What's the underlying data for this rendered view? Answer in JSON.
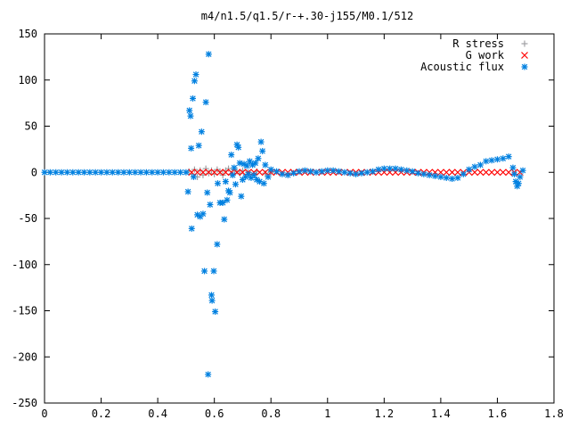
{
  "chart_data": {
    "type": "scatter",
    "title": "m4/n1.5/q1.5/r-+.30-j155/M0.1/512",
    "xlabel": "",
    "ylabel": "",
    "xlim": [
      0,
      1.8
    ],
    "ylim": [
      -250,
      150
    ],
    "x_ticks": [
      "0",
      "0.2",
      "0.4",
      "0.6",
      "0.8",
      "1",
      "1.2",
      "1.4",
      "1.6",
      "1.8"
    ],
    "y_ticks": [
      "150",
      "100",
      "50",
      "0",
      "-50",
      "-100",
      "-150",
      "-200",
      "-250"
    ],
    "grid": false,
    "legend_position": "top-right",
    "series": [
      {
        "name": "R stress",
        "marker": "+",
        "color": "#a0a0a4",
        "points": [
          [
            0.51,
            1
          ],
          [
            0.52,
            -2
          ],
          [
            0.53,
            3
          ],
          [
            0.54,
            -5
          ],
          [
            0.55,
            2
          ],
          [
            0.56,
            -3
          ],
          [
            0.57,
            4
          ],
          [
            0.58,
            -1
          ],
          [
            0.59,
            2
          ],
          [
            0.6,
            -2
          ],
          [
            0.61,
            3
          ],
          [
            0.62,
            1
          ],
          [
            0.63,
            -3
          ],
          [
            0.64,
            2
          ],
          [
            0.65,
            4
          ],
          [
            0.66,
            -2
          ],
          [
            0.67,
            3
          ],
          [
            0.68,
            1
          ],
          [
            0.69,
            -1
          ],
          [
            0.7,
            2
          ],
          [
            0.72,
            0
          ],
          [
            0.75,
            1
          ],
          [
            0.78,
            -1
          ],
          [
            0.8,
            0
          ]
        ]
      },
      {
        "name": "G work",
        "marker": "x",
        "color": "#ff0000",
        "points": [
          [
            0.52,
            0
          ],
          [
            0.54,
            0
          ],
          [
            0.56,
            0
          ],
          [
            0.58,
            0
          ],
          [
            0.6,
            0
          ],
          [
            0.62,
            0
          ],
          [
            0.64,
            0
          ],
          [
            0.66,
            0
          ],
          [
            0.68,
            0
          ],
          [
            0.7,
            0
          ],
          [
            0.72,
            0
          ],
          [
            0.74,
            0
          ],
          [
            0.76,
            0
          ],
          [
            0.78,
            0
          ],
          [
            0.8,
            0
          ],
          [
            0.82,
            0
          ],
          [
            0.84,
            0
          ],
          [
            0.86,
            0
          ],
          [
            0.88,
            0
          ],
          [
            0.9,
            0
          ],
          [
            0.92,
            0
          ],
          [
            0.94,
            0
          ],
          [
            0.96,
            0
          ],
          [
            0.98,
            0
          ],
          [
            1.0,
            0
          ],
          [
            1.02,
            0
          ],
          [
            1.04,
            0
          ],
          [
            1.06,
            0
          ],
          [
            1.08,
            0
          ],
          [
            1.1,
            0
          ],
          [
            1.12,
            0
          ],
          [
            1.14,
            0
          ],
          [
            1.16,
            0
          ],
          [
            1.18,
            0
          ],
          [
            1.2,
            0
          ],
          [
            1.22,
            0
          ],
          [
            1.24,
            0
          ],
          [
            1.26,
            0
          ],
          [
            1.28,
            0
          ],
          [
            1.3,
            0
          ],
          [
            1.32,
            0
          ],
          [
            1.34,
            0
          ],
          [
            1.36,
            0
          ],
          [
            1.38,
            0
          ],
          [
            1.4,
            0
          ],
          [
            1.42,
            0
          ],
          [
            1.44,
            0
          ],
          [
            1.46,
            0
          ],
          [
            1.48,
            0
          ],
          [
            1.5,
            0
          ],
          [
            1.52,
            0
          ],
          [
            1.54,
            0
          ],
          [
            1.56,
            0
          ],
          [
            1.58,
            0
          ],
          [
            1.6,
            0
          ],
          [
            1.62,
            0
          ],
          [
            1.64,
            0
          ],
          [
            1.66,
            0
          ],
          [
            1.68,
            0
          ]
        ]
      },
      {
        "name": "Acoustic flux",
        "marker": "*",
        "color": "#0080e0",
        "points": [
          [
            0.0,
            0
          ],
          [
            0.02,
            0
          ],
          [
            0.04,
            0
          ],
          [
            0.06,
            0
          ],
          [
            0.08,
            0
          ],
          [
            0.1,
            0
          ],
          [
            0.12,
            0
          ],
          [
            0.14,
            0
          ],
          [
            0.16,
            0
          ],
          [
            0.18,
            0
          ],
          [
            0.2,
            0
          ],
          [
            0.22,
            0
          ],
          [
            0.24,
            0
          ],
          [
            0.26,
            0
          ],
          [
            0.28,
            0
          ],
          [
            0.3,
            0
          ],
          [
            0.32,
            0
          ],
          [
            0.34,
            0
          ],
          [
            0.36,
            0
          ],
          [
            0.38,
            0
          ],
          [
            0.4,
            0
          ],
          [
            0.42,
            0
          ],
          [
            0.44,
            0
          ],
          [
            0.46,
            0
          ],
          [
            0.48,
            0
          ],
          [
            0.5,
            0
          ],
          [
            0.507,
            -21
          ],
          [
            0.512,
            67
          ],
          [
            0.516,
            61
          ],
          [
            0.518,
            26
          ],
          [
            0.52,
            -61
          ],
          [
            0.524,
            80
          ],
          [
            0.527,
            -5
          ],
          [
            0.53,
            99
          ],
          [
            0.535,
            106
          ],
          [
            0.54,
            -46
          ],
          [
            0.545,
            29
          ],
          [
            0.55,
            -48
          ],
          [
            0.555,
            44
          ],
          [
            0.56,
            -45
          ],
          [
            0.565,
            -107
          ],
          [
            0.57,
            76
          ],
          [
            0.575,
            -22
          ],
          [
            0.578,
            -219
          ],
          [
            0.58,
            128
          ],
          [
            0.585,
            -35
          ],
          [
            0.59,
            -133
          ],
          [
            0.592,
            -139
          ],
          [
            0.598,
            -107
          ],
          [
            0.603,
            -151
          ],
          [
            0.61,
            -78
          ],
          [
            0.612,
            -12
          ],
          [
            0.62,
            -33
          ],
          [
            0.63,
            -33
          ],
          [
            0.635,
            -51
          ],
          [
            0.64,
            -10
          ],
          [
            0.645,
            -30
          ],
          [
            0.65,
            -20
          ],
          [
            0.655,
            -22
          ],
          [
            0.66,
            19
          ],
          [
            0.665,
            -3
          ],
          [
            0.67,
            5
          ],
          [
            0.675,
            -13
          ],
          [
            0.68,
            30
          ],
          [
            0.685,
            27
          ],
          [
            0.69,
            10
          ],
          [
            0.695,
            -26
          ],
          [
            0.7,
            -8
          ],
          [
            0.705,
            9
          ],
          [
            0.71,
            -5
          ],
          [
            0.715,
            7
          ],
          [
            0.72,
            -2
          ],
          [
            0.725,
            12
          ],
          [
            0.73,
            -6
          ],
          [
            0.735,
            8
          ],
          [
            0.74,
            -3
          ],
          [
            0.745,
            10
          ],
          [
            0.75,
            -8
          ],
          [
            0.755,
            15
          ],
          [
            0.76,
            -10
          ],
          [
            0.765,
            33
          ],
          [
            0.77,
            23
          ],
          [
            0.775,
            -12
          ],
          [
            0.78,
            8
          ],
          [
            0.79,
            -5
          ],
          [
            0.8,
            3
          ],
          [
            0.82,
            1
          ],
          [
            0.84,
            -2
          ],
          [
            0.86,
            -3
          ],
          [
            0.88,
            -1
          ],
          [
            0.9,
            1
          ],
          [
            0.92,
            2
          ],
          [
            0.94,
            1
          ],
          [
            0.96,
            0
          ],
          [
            0.98,
            1
          ],
          [
            1.0,
            2
          ],
          [
            1.02,
            2
          ],
          [
            1.04,
            1
          ],
          [
            1.06,
            0
          ],
          [
            1.08,
            -1
          ],
          [
            1.1,
            -2
          ],
          [
            1.12,
            -1
          ],
          [
            1.14,
            0
          ],
          [
            1.16,
            1
          ],
          [
            1.18,
            3
          ],
          [
            1.2,
            4
          ],
          [
            1.22,
            4
          ],
          [
            1.24,
            4
          ],
          [
            1.26,
            3
          ],
          [
            1.28,
            2
          ],
          [
            1.3,
            1
          ],
          [
            1.32,
            -1
          ],
          [
            1.34,
            -2
          ],
          [
            1.36,
            -3
          ],
          [
            1.38,
            -4
          ],
          [
            1.4,
            -5
          ],
          [
            1.42,
            -6
          ],
          [
            1.44,
            -7
          ],
          [
            1.46,
            -6
          ],
          [
            1.48,
            -2
          ],
          [
            1.5,
            3
          ],
          [
            1.52,
            6
          ],
          [
            1.54,
            8
          ],
          [
            1.56,
            12
          ],
          [
            1.58,
            13
          ],
          [
            1.6,
            14
          ],
          [
            1.62,
            15
          ],
          [
            1.64,
            17
          ],
          [
            1.655,
            5
          ],
          [
            1.66,
            -2
          ],
          [
            1.665,
            -10
          ],
          [
            1.67,
            -15
          ],
          [
            1.675,
            -12
          ],
          [
            1.68,
            -5
          ],
          [
            1.69,
            2
          ]
        ]
      }
    ]
  }
}
